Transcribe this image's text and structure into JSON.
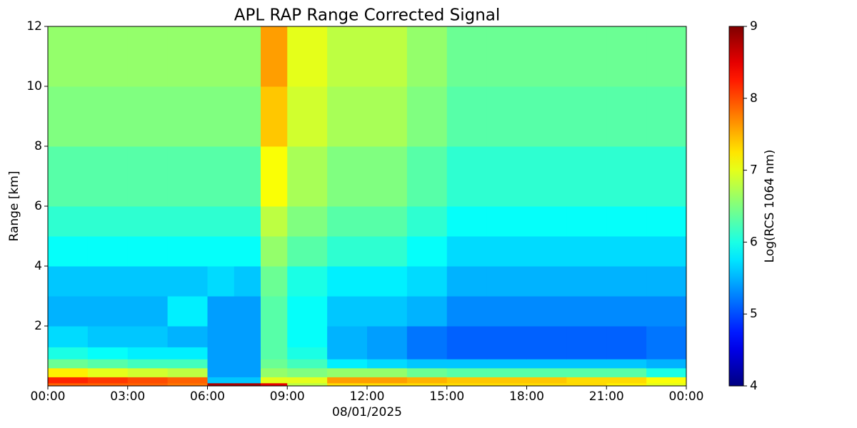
{
  "chart_data": {
    "type": "heatmap",
    "title": "APL RAP Range Corrected Signal",
    "xlabel": "08/01/2025",
    "ylabel": "Range [km]",
    "colorbar_label": "Log(RCS 1064 nm)",
    "colormap": "jet",
    "xlim": [
      0,
      24
    ],
    "ylim": [
      0,
      12
    ],
    "clim": [
      4,
      9
    ],
    "xticks": [
      {
        "value": 0,
        "label": "00:00"
      },
      {
        "value": 3,
        "label": "03:00"
      },
      {
        "value": 6,
        "label": "06:00"
      },
      {
        "value": 9,
        "label": "09:00"
      },
      {
        "value": 12,
        "label": "12:00"
      },
      {
        "value": 15,
        "label": "15:00"
      },
      {
        "value": 18,
        "label": "18:00"
      },
      {
        "value": 21,
        "label": "21:00"
      },
      {
        "value": 24,
        "label": "00:00"
      }
    ],
    "yticks": [
      2,
      4,
      6,
      8,
      10,
      12
    ],
    "cticks": [
      4,
      5,
      6,
      7,
      8,
      9
    ],
    "x_bins": [
      0,
      1.5,
      3,
      4.5,
      6,
      7,
      8,
      9,
      10.5,
      12,
      13.5,
      15,
      16.5,
      18,
      19.5,
      21,
      22.5,
      24
    ],
    "y_bins": [
      0,
      0.1,
      0.3,
      0.6,
      0.9,
      1.3,
      2,
      3,
      4,
      5,
      6,
      8,
      10,
      12
    ],
    "values": [
      [
        7.9,
        7.9,
        7.9,
        7.8,
        8.8,
        8.8,
        8.5,
        6.8,
        7.3,
        7.3,
        7.3,
        7.3,
        7.3,
        7.3,
        7.3,
        7.2,
        7.0
      ],
      [
        8.2,
        8.1,
        8.0,
        7.9,
        5.6,
        5.6,
        7.0,
        7.0,
        7.6,
        7.6,
        7.5,
        7.4,
        7.4,
        7.4,
        7.3,
        7.3,
        7.1
      ],
      [
        7.2,
        7.0,
        6.9,
        6.8,
        5.4,
        5.4,
        6.6,
        6.5,
        6.6,
        6.6,
        6.4,
        6.3,
        6.3,
        6.3,
        6.3,
        6.3,
        6.0
      ],
      [
        6.4,
        6.3,
        6.2,
        6.2,
        5.4,
        5.4,
        6.4,
        6.2,
        5.8,
        5.7,
        5.6,
        5.6,
        5.6,
        5.6,
        5.6,
        5.6,
        5.5
      ],
      [
        6.0,
        5.9,
        5.8,
        5.8,
        5.4,
        5.4,
        6.3,
        6.0,
        5.5,
        5.4,
        5.2,
        5.1,
        5.1,
        5.1,
        5.1,
        5.1,
        5.2
      ],
      [
        5.7,
        5.6,
        5.6,
        5.5,
        5.4,
        5.4,
        6.3,
        5.9,
        5.5,
        5.4,
        5.2,
        5.1,
        5.1,
        5.1,
        5.1,
        5.1,
        5.2
      ],
      [
        5.5,
        5.5,
        5.5,
        5.8,
        5.4,
        5.4,
        6.3,
        5.9,
        5.6,
        5.6,
        5.5,
        5.3,
        5.3,
        5.3,
        5.3,
        5.3,
        5.3
      ],
      [
        5.6,
        5.6,
        5.6,
        5.6,
        5.7,
        5.6,
        6.4,
        6.0,
        5.8,
        5.8,
        5.7,
        5.5,
        5.5,
        5.5,
        5.5,
        5.5,
        5.5
      ],
      [
        5.9,
        5.9,
        5.9,
        5.9,
        5.9,
        5.9,
        6.6,
        6.3,
        6.1,
        6.1,
        5.9,
        5.7,
        5.7,
        5.7,
        5.7,
        5.7,
        5.7
      ],
      [
        6.1,
        6.1,
        6.1,
        6.1,
        6.1,
        6.1,
        6.8,
        6.5,
        6.3,
        6.3,
        6.1,
        5.9,
        5.9,
        5.9,
        5.9,
        5.9,
        5.9
      ],
      [
        6.3,
        6.3,
        6.3,
        6.3,
        6.3,
        6.3,
        7.1,
        6.7,
        6.5,
        6.5,
        6.3,
        6.1,
        6.1,
        6.1,
        6.1,
        6.1,
        6.1
      ],
      [
        6.5,
        6.5,
        6.5,
        6.5,
        6.5,
        6.5,
        7.4,
        6.9,
        6.7,
        6.7,
        6.5,
        6.3,
        6.3,
        6.3,
        6.3,
        6.3,
        6.3
      ],
      [
        6.6,
        6.6,
        6.6,
        6.6,
        6.6,
        6.6,
        7.6,
        7.0,
        6.8,
        6.8,
        6.6,
        6.4,
        6.4,
        6.4,
        6.4,
        6.4,
        6.4
      ]
    ]
  }
}
